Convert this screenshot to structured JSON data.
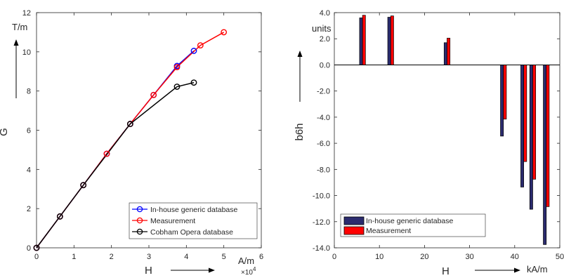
{
  "chart_data": [
    {
      "type": "line",
      "title": "",
      "xlabel": "H",
      "ylabel": "G",
      "x_unit": "A/m",
      "y_unit": "T/m",
      "x_multiplier": "×10",
      "x_multiplier_exp": "4",
      "xlim": [
        0,
        6
      ],
      "ylim": [
        0,
        12
      ],
      "xticks": [
        0,
        1,
        2,
        3,
        4,
        5,
        6
      ],
      "yticks": [
        0,
        2,
        4,
        6,
        8,
        10,
        12
      ],
      "legend_position": "bottom-right",
      "grid": false,
      "series": [
        {
          "name": "In-house generic database",
          "color": "#0000ff",
          "x": [
            0,
            0.625,
            1.25,
            1.875,
            2.5,
            3.125,
            3.75,
            4.2
          ],
          "y": [
            0,
            1.6,
            3.2,
            4.8,
            6.32,
            7.8,
            9.28,
            10.05
          ]
        },
        {
          "name": "Measurement",
          "color": "#ff0000",
          "x": [
            0,
            0.625,
            1.25,
            1.875,
            2.5,
            3.125,
            3.75,
            4.375,
            5.0
          ],
          "y": [
            0,
            1.6,
            3.2,
            4.8,
            6.32,
            7.8,
            9.22,
            10.33,
            11.0
          ]
        },
        {
          "name": "Cobham Opera database",
          "color": "#000000",
          "x": [
            0,
            0.625,
            1.25,
            2.5,
            3.75,
            4.2
          ],
          "y": [
            0,
            1.6,
            3.2,
            6.32,
            8.22,
            8.43
          ]
        }
      ]
    },
    {
      "type": "bar",
      "title": "",
      "xlabel": "H",
      "ylabel": "b6h",
      "x_unit": "kA/m",
      "y_unit": "units",
      "xlim": [
        0,
        50
      ],
      "ylim": [
        -14,
        4
      ],
      "xticks": [
        "0",
        "10",
        "20",
        "30",
        "40",
        "50"
      ],
      "yticks": [
        "4.0",
        "2.0",
        "0.0",
        "-2.0",
        "-4.0",
        "-6.0",
        "-8.0",
        "-10.0",
        "-12.0",
        "-14.0"
      ],
      "legend_position": "bottom-left",
      "grid": false,
      "x": [
        6.25,
        12.5,
        25,
        37.5,
        42,
        44,
        47
      ],
      "series": [
        {
          "name": "In-house generic database",
          "color": "#2b2b6e",
          "values": [
            3.6,
            3.65,
            1.7,
            -5.45,
            -9.35,
            -11.05,
            -13.75
          ]
        },
        {
          "name": "Measurement",
          "color": "#ff0000",
          "values": [
            3.8,
            3.75,
            2.05,
            -4.15,
            -7.4,
            -8.75,
            -10.85
          ]
        }
      ]
    }
  ]
}
